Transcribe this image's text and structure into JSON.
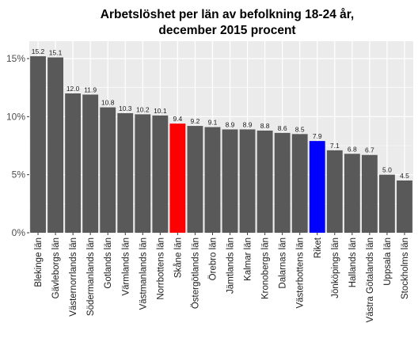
{
  "chart_data": {
    "type": "bar",
    "title_line1": "Arbetslöshet per län av befolkning 18-24 år,",
    "title_line2": "december 2015 procent",
    "xlabel": "",
    "ylabel": "",
    "ylim": [
      0,
      16.5
    ],
    "y_ticks": [
      {
        "value": 0,
        "label": "0%"
      },
      {
        "value": 5,
        "label": "5%"
      },
      {
        "value": 10,
        "label": "10%"
      },
      {
        "value": 15,
        "label": "15%"
      }
    ],
    "grid": true,
    "categories": [
      "Blekinge län",
      "Gävleborgs län",
      "Västernorrlands län",
      "Södermanlands län",
      "Gotlands län",
      "Värmlands län",
      "Västmanlands län",
      "Norrbottens län",
      "Skåne län",
      "Östergötlands län",
      "Örebro län",
      "Jämtlands län",
      "Kalmar län",
      "Kronobergs län",
      "Dalarnas län",
      "Västerbottens län",
      "Riket",
      "Jönköpings län",
      "Hallands län",
      "Västra Götalands län",
      "Uppsala län",
      "Stockholms län"
    ],
    "values": [
      15.2,
      15.1,
      12.0,
      11.9,
      10.8,
      10.3,
      10.2,
      10.1,
      9.4,
      9.2,
      9.1,
      8.9,
      8.9,
      8.8,
      8.6,
      8.5,
      7.9,
      7.1,
      6.8,
      6.7,
      5.0,
      4.5
    ],
    "value_labels": [
      "15.2",
      "15.1",
      "12.0",
      "11.9",
      "10.8",
      "10.3",
      "10.2",
      "10.1",
      "9.4",
      "9.2",
      "9.1",
      "8.9",
      "8.9",
      "8.8",
      "8.6",
      "8.5",
      "7.9",
      "7.1",
      "6.8",
      "6.7",
      "5.0",
      "4.5"
    ],
    "colors": [
      "#595959",
      "#595959",
      "#595959",
      "#595959",
      "#595959",
      "#595959",
      "#595959",
      "#595959",
      "#ff0000",
      "#595959",
      "#595959",
      "#595959",
      "#595959",
      "#595959",
      "#595959",
      "#595959",
      "#0000ff",
      "#595959",
      "#595959",
      "#595959",
      "#595959",
      "#595959"
    ],
    "panel_color": "#ebebeb",
    "grid_color": "#ffffff"
  }
}
